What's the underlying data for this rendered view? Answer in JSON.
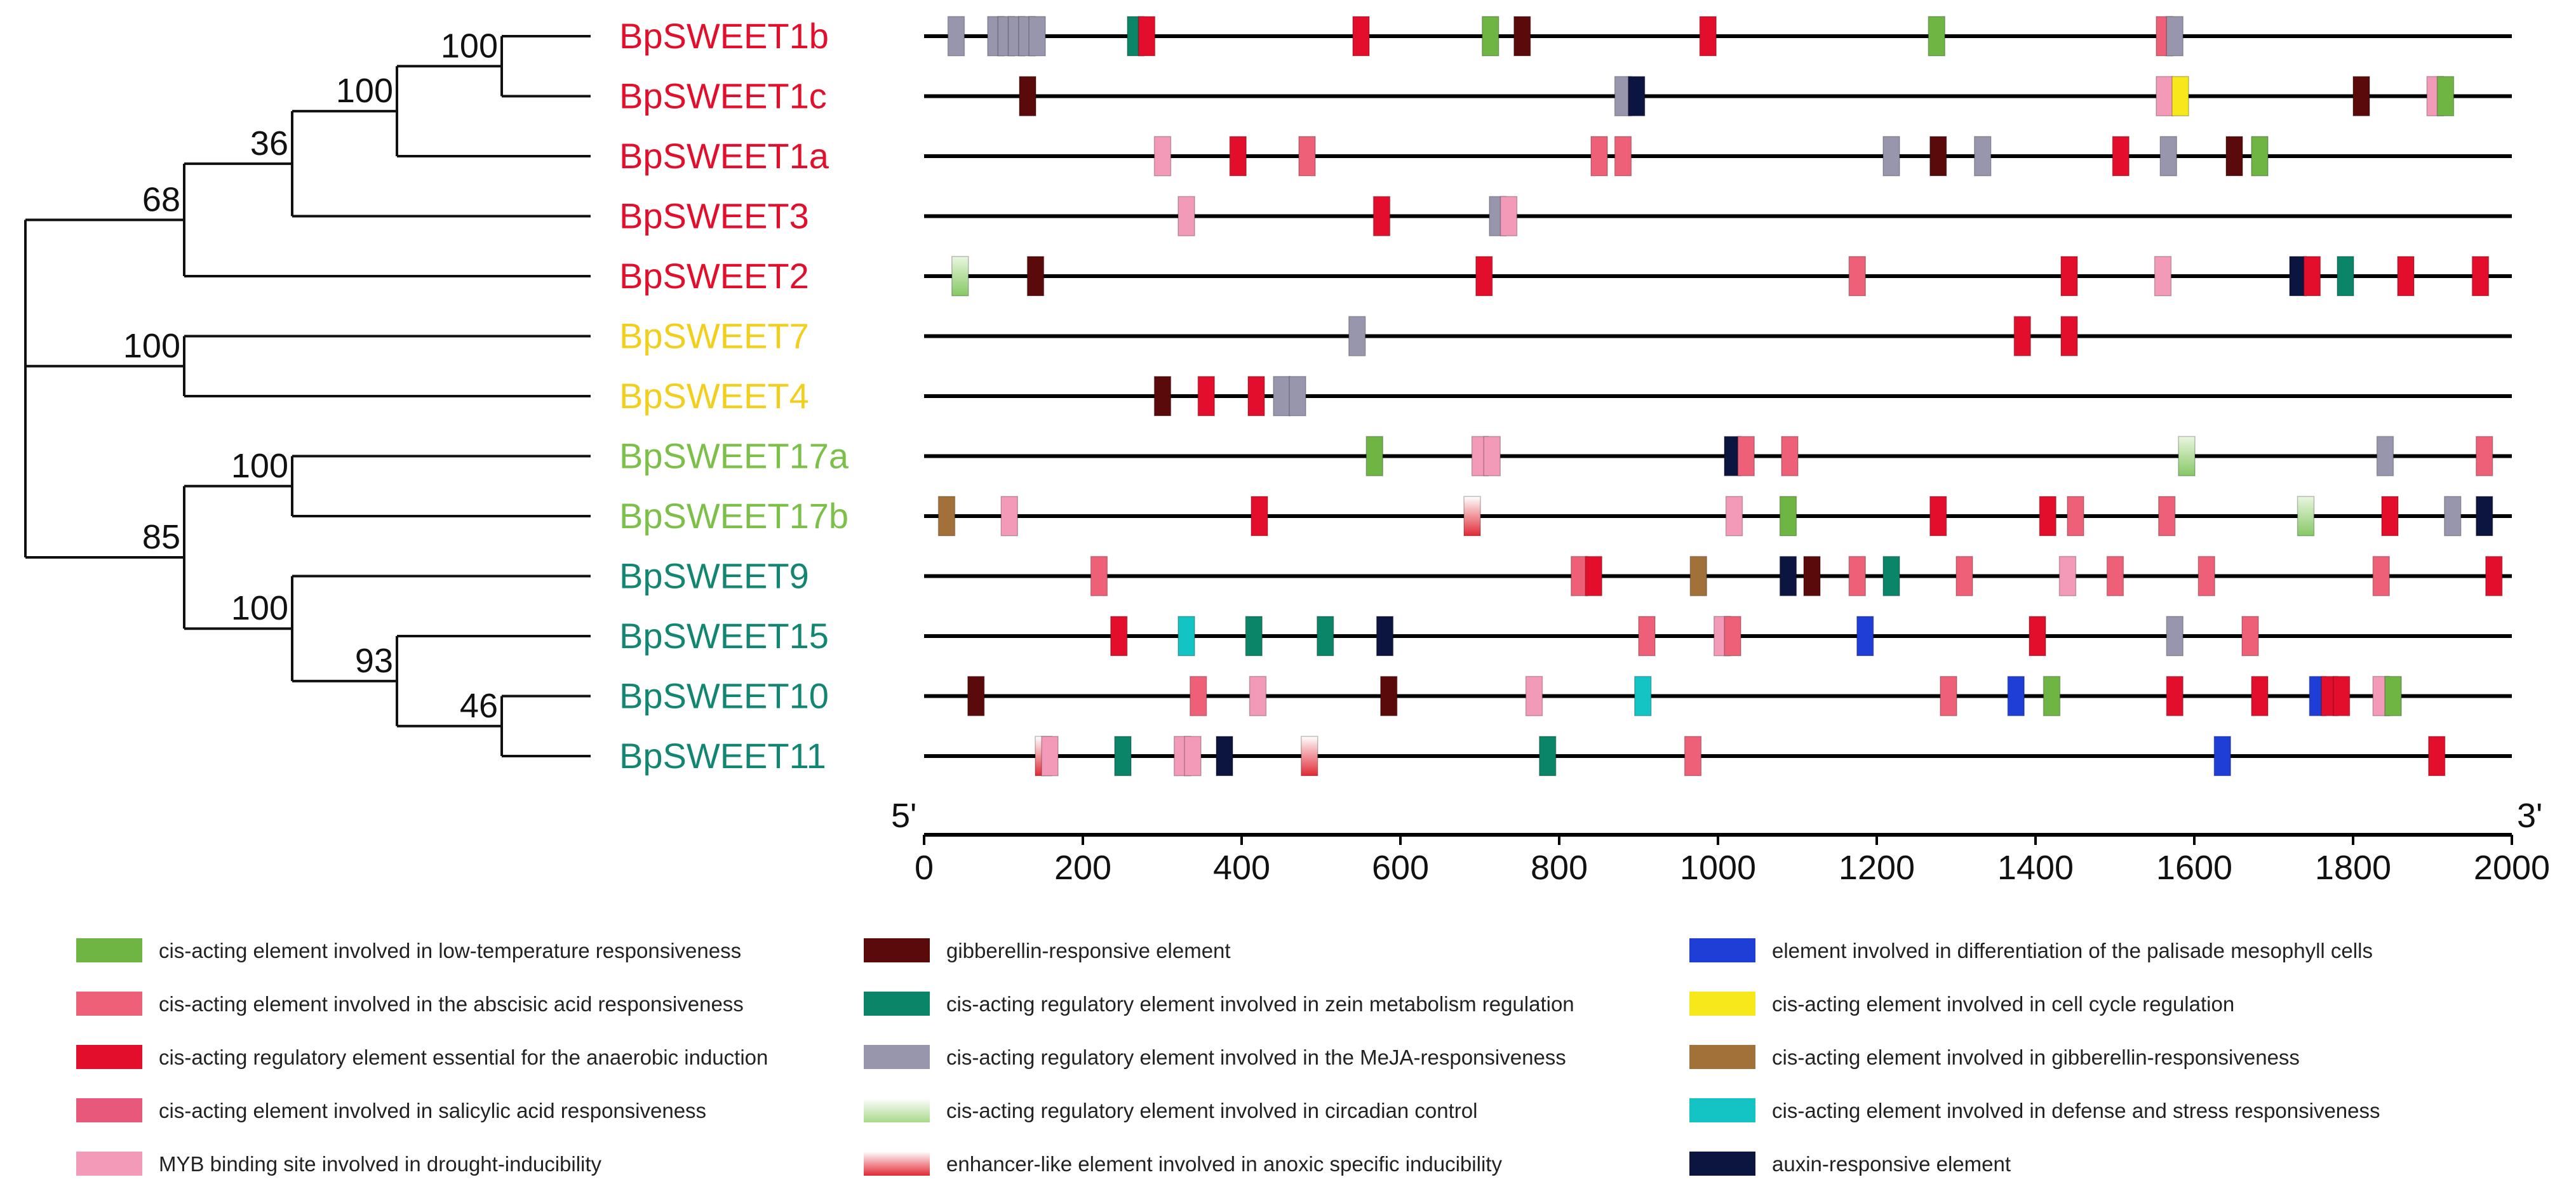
{
  "axis": {
    "min": 0,
    "max": 2000,
    "ticks": [
      0,
      200,
      400,
      600,
      800,
      1000,
      1200,
      1400,
      1600,
      1800,
      2000
    ],
    "end_left": "5'",
    "end_right": "3'"
  },
  "genes": [
    {
      "name": "BpSWEET1b",
      "color": "#e30e2c"
    },
    {
      "name": "BpSWEET1c",
      "color": "#e30e2c"
    },
    {
      "name": "BpSWEET1a",
      "color": "#e30e2c"
    },
    {
      "name": "BpSWEET3",
      "color": "#e30e2c"
    },
    {
      "name": "BpSWEET2",
      "color": "#e30e2c"
    },
    {
      "name": "BpSWEET7",
      "color": "#f2cf1d"
    },
    {
      "name": "BpSWEET4",
      "color": "#f2cf1d"
    },
    {
      "name": "BpSWEET17a",
      "color": "#7cc04a"
    },
    {
      "name": "BpSWEET17b",
      "color": "#7cc04a"
    },
    {
      "name": "BpSWEET9",
      "color": "#138672"
    },
    {
      "name": "BpSWEET15",
      "color": "#138672"
    },
    {
      "name": "BpSWEET10",
      "color": "#138672"
    },
    {
      "name": "BpSWEET11",
      "color": "#138672"
    }
  ],
  "tree": {
    "bootstrap": [
      "100",
      "100",
      "36",
      "68",
      "100",
      "100",
      "85",
      "100",
      "93",
      "46"
    ]
  },
  "element_types": {
    "low_temp": {
      "label": "cis-acting element involved in low-temperature responsiveness",
      "color": "#6fb544"
    },
    "aba": {
      "label": "cis-acting element involved in the abscisic acid responsiveness",
      "color": "#ee6078"
    },
    "anaerobic": {
      "label": "cis-acting regulatory element essential for the anaerobic induction",
      "color": "#e30e2c"
    },
    "sa": {
      "label": "cis-acting element involved in salicylic acid responsiveness",
      "color": "#e8587a"
    },
    "myb": {
      "label": "MYB binding site involved in drought-inducibility",
      "color": "#f39ab8"
    },
    "ga": {
      "label": "gibberellin-responsive element",
      "color": "#5a0a0a"
    },
    "zein": {
      "label": "cis-acting regulatory element involved in zein metabolism regulation",
      "color": "#0b8568"
    },
    "meja": {
      "label": "cis-acting regulatory element involved in the MeJA-responsiveness",
      "color": "#9896ac"
    },
    "circadian": {
      "label": "cis-acting regulatory element involved in circadian control",
      "color": "#b2dc92"
    },
    "anoxic": {
      "label": "enhancer-like element involved in anoxic specific inducibility",
      "color": "#e23a4a"
    },
    "palisade": {
      "label": "element involved in differentiation of the palisade mesophyll cells",
      "color": "#1e3ed6"
    },
    "cell_cycle": {
      "label": "cis-acting element involved in cell cycle regulation",
      "color": "#f6e81a"
    },
    "ga_resp": {
      "label": "cis-acting element involved in gibberellin-responsiveness",
      "color": "#a2713a"
    },
    "defense": {
      "label": "cis-acting element involved in defense and stress responsiveness",
      "color": "#14c4c4"
    },
    "auxin": {
      "label": "auxin-responsive element",
      "color": "#0c1440"
    }
  },
  "legend_order": [
    "low_temp",
    "aba",
    "anaerobic",
    "sa",
    "myb",
    "ga",
    "zein",
    "meja",
    "circadian",
    "anoxic",
    "palisade",
    "cell_cycle",
    "ga_resp",
    "defense",
    "auxin"
  ],
  "elements": [
    [
      [
        "meja",
        30
      ],
      [
        "meja",
        80
      ],
      [
        "meja",
        93
      ],
      [
        "meja",
        106
      ],
      [
        "meja",
        119
      ],
      [
        "meja",
        132
      ],
      [
        "zein",
        256
      ],
      [
        "anaerobic",
        270
      ],
      [
        "anaerobic",
        540
      ],
      [
        "low_temp",
        703
      ],
      [
        "ga",
        743
      ],
      [
        "anaerobic",
        977
      ],
      [
        "low_temp",
        1265
      ],
      [
        "aba",
        1552
      ],
      [
        "meja",
        1565
      ]
    ],
    [
      [
        "ga",
        120
      ],
      [
        "meja",
        870
      ],
      [
        "auxin",
        887
      ],
      [
        "myb",
        1552
      ],
      [
        "cell_cycle",
        1572
      ],
      [
        "ga",
        1800
      ],
      [
        "myb",
        1893
      ],
      [
        "low_temp",
        1906
      ]
    ],
    [
      [
        "myb",
        290
      ],
      [
        "anaerobic",
        385
      ],
      [
        "aba",
        472
      ],
      [
        "aba",
        840
      ],
      [
        "aba",
        870
      ],
      [
        "meja",
        1208
      ],
      [
        "ga",
        1267
      ],
      [
        "meja",
        1323
      ],
      [
        "anaerobic",
        1497
      ],
      [
        "meja",
        1557
      ],
      [
        "ga",
        1640
      ],
      [
        "low_temp",
        1672
      ]
    ],
    [
      [
        "myb",
        320
      ],
      [
        "anaerobic",
        566
      ],
      [
        "meja",
        712
      ],
      [
        "myb",
        726
      ]
    ],
    [
      [
        "circadian",
        35
      ],
      [
        "ga",
        130
      ],
      [
        "anaerobic",
        695
      ],
      [
        "aba",
        1165
      ],
      [
        "anaerobic",
        1432
      ],
      [
        "myb",
        1550
      ],
      [
        "auxin",
        1720
      ],
      [
        "anaerobic",
        1738
      ],
      [
        "zein",
        1780
      ],
      [
        "anaerobic",
        1856
      ],
      [
        "anaerobic",
        1950
      ]
    ],
    [
      [
        "meja",
        535
      ],
      [
        "anaerobic",
        1373
      ],
      [
        "anaerobic",
        1432
      ]
    ],
    [
      [
        "ga",
        290
      ],
      [
        "anaerobic",
        345
      ],
      [
        "anaerobic",
        408
      ],
      [
        "meja",
        440
      ],
      [
        "meja",
        460
      ]
    ],
    [
      [
        "low_temp",
        557
      ],
      [
        "myb",
        690
      ],
      [
        "myb",
        705
      ],
      [
        "auxin",
        1008
      ],
      [
        "aba",
        1025
      ],
      [
        "aba",
        1080
      ],
      [
        "circadian",
        1580
      ],
      [
        "meja",
        1830
      ],
      [
        "aba",
        1955
      ]
    ],
    [
      [
        "ga_resp",
        18
      ],
      [
        "myb",
        97
      ],
      [
        "anaerobic",
        412
      ],
      [
        "anoxic",
        680
      ],
      [
        "myb",
        1010
      ],
      [
        "low_temp",
        1078
      ],
      [
        "anaerobic",
        1267
      ],
      [
        "anaerobic",
        1405
      ],
      [
        "aba",
        1440
      ],
      [
        "aba",
        1555
      ],
      [
        "circadian",
        1730
      ],
      [
        "anaerobic",
        1836
      ],
      [
        "meja",
        1915
      ],
      [
        "auxin",
        1955
      ]
    ],
    [
      [
        "aba",
        210
      ],
      [
        "aba",
        815
      ],
      [
        "anaerobic",
        833
      ],
      [
        "ga_resp",
        965
      ],
      [
        "auxin",
        1078
      ],
      [
        "ga",
        1108
      ],
      [
        "aba",
        1165
      ],
      [
        "zein",
        1208
      ],
      [
        "aba",
        1300
      ],
      [
        "myb",
        1430
      ],
      [
        "aba",
        1490
      ],
      [
        "aba",
        1605
      ],
      [
        "aba",
        1825
      ],
      [
        "anaerobic",
        1967
      ]
    ],
    [
      [
        "anaerobic",
        235
      ],
      [
        "defense",
        320
      ],
      [
        "zein",
        405
      ],
      [
        "zein",
        495
      ],
      [
        "auxin",
        570
      ],
      [
        "aba",
        900
      ],
      [
        "myb",
        995
      ],
      [
        "aba",
        1008
      ],
      [
        "palisade",
        1175
      ],
      [
        "anaerobic",
        1392
      ],
      [
        "meja",
        1565
      ],
      [
        "aba",
        1660
      ]
    ],
    [
      [
        "ga",
        55
      ],
      [
        "aba",
        335
      ],
      [
        "myb",
        410
      ],
      [
        "ga",
        575
      ],
      [
        "myb",
        758
      ],
      [
        "defense",
        895
      ],
      [
        "aba",
        1280
      ],
      [
        "palisade",
        1365
      ],
      [
        "low_temp",
        1410
      ],
      [
        "anaerobic",
        1565
      ],
      [
        "anaerobic",
        1672
      ],
      [
        "palisade",
        1745
      ],
      [
        "anaerobic",
        1760
      ],
      [
        "anaerobic",
        1775
      ],
      [
        "myb",
        1825
      ],
      [
        "low_temp",
        1840
      ]
    ],
    [
      [
        "anoxic",
        140
      ],
      [
        "myb",
        148
      ],
      [
        "zein",
        240
      ],
      [
        "myb",
        315
      ],
      [
        "myb",
        328
      ],
      [
        "auxin",
        368
      ],
      [
        "anoxic",
        475
      ],
      [
        "zein",
        775
      ],
      [
        "aba",
        958
      ],
      [
        "palisade",
        1625
      ],
      [
        "anaerobic",
        1895
      ]
    ]
  ]
}
